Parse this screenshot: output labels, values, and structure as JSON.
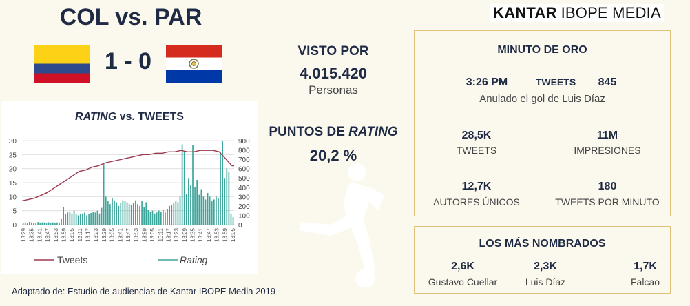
{
  "match": {
    "title": "COL vs. PAR",
    "score": "1 - 0"
  },
  "audience": {
    "visto_label": "VISTO POR",
    "visto_value": "4.015.420",
    "visto_unit": "Personas",
    "puntos_label_prefix": "PUNTOS DE ",
    "puntos_label_em": "RATING",
    "puntos_value": "20,2 %"
  },
  "brand": {
    "bold": "KANTAR",
    "rest": "IBOPE MEDIA"
  },
  "minuto": {
    "title": "MINUTO DE ORO",
    "time": "3:26 PM",
    "tweets_label": "TWEETS",
    "tweets_count": "845",
    "caption": "Anulado el gol de Luis Díaz",
    "stats": [
      {
        "value": "28,5K",
        "label": "TWEETS"
      },
      {
        "value": "11M",
        "label": "IMPRESIONES"
      },
      {
        "value": "12,7K",
        "label": "AUTORES ÚNICOS"
      },
      {
        "value": "180",
        "label": "TWEETS POR MINUTO"
      }
    ]
  },
  "nombrados": {
    "title": "LOS MÁS NOMBRADOS",
    "people": [
      {
        "value": "2,6K",
        "name": "Gustavo Cuellar"
      },
      {
        "value": "2,3K",
        "name": "Luis Díaz"
      },
      {
        "value": "1,7K",
        "name": "Falcao"
      }
    ]
  },
  "source": "Adaptado de: Estudio de audiencias de Kantar IBOPE Media 2019",
  "colors": {
    "navy": "#1f2a44",
    "tweets_line": "#9b3a4f",
    "rating_bars": "#3ea59a",
    "panel_border": "#e0c27a",
    "col_yellow": "#fcd116",
    "col_blue": "#2c4a8c",
    "col_red": "#ce1126",
    "par_red": "#d52b1e",
    "par_blue": "#0038a8"
  },
  "chart_data": {
    "type": "line",
    "title_em": "RATING",
    "title_rest": " vs. TWEETS",
    "y_left_ticks": [
      0,
      5,
      10,
      15,
      20,
      25,
      30
    ],
    "y_right_ticks": [
      0,
      100,
      200,
      300,
      400,
      500,
      600,
      700,
      800,
      900
    ],
    "x_tick_labels": [
      "13:29",
      "13:35",
      "13:41",
      "13:47",
      "13:53",
      "13:59",
      "13:05",
      "13:11",
      "13:17",
      "13:23",
      "13:29",
      "13:35",
      "13:41",
      "13:47",
      "13:53",
      "13:59",
      "13:05",
      "13:11",
      "13:17",
      "13:23",
      "13:29",
      "13:35",
      "13:41",
      "13:47",
      "13:53",
      "13:59",
      "13:05"
    ],
    "legend": [
      "Tweets",
      "Rating"
    ],
    "series": [
      {
        "name": "Tweets",
        "axis": "left",
        "x": [
          0,
          3,
          6,
          9,
          12,
          15,
          18,
          21,
          24,
          27,
          30,
          33,
          36,
          39,
          42,
          45,
          48,
          51,
          54,
          57,
          60,
          63,
          66,
          69,
          72,
          75,
          78,
          81,
          84,
          87,
          90,
          93,
          96,
          99,
          100
        ],
        "values": [
          8.5,
          9,
          9.5,
          10.5,
          11.5,
          13,
          14.5,
          16,
          17.5,
          19,
          19.5,
          20.5,
          21,
          22,
          22.5,
          23,
          23.5,
          24,
          24.5,
          25,
          25,
          25.5,
          25.5,
          26,
          26,
          26.5,
          26,
          26,
          26.5,
          26.5,
          26.5,
          26,
          23.5,
          21,
          21
        ]
      },
      {
        "name": "Rating",
        "axis": "right",
        "x_count": 100,
        "values": [
          20,
          25,
          20,
          30,
          25,
          20,
          22,
          28,
          20,
          25,
          24,
          20,
          26,
          22,
          25,
          20,
          24,
          22,
          60,
          190,
          110,
          130,
          140,
          120,
          150,
          110,
          100,
          115,
          120,
          130,
          100,
          115,
          125,
          140,
          130,
          150,
          120,
          180,
          660,
          300,
          250,
          220,
          280,
          260,
          240,
          200,
          230,
          260,
          250,
          240,
          220,
          210,
          230,
          260,
          220,
          200,
          250,
          190,
          240,
          160,
          140,
          150,
          120,
          130,
          150,
          140,
          160,
          130,
          170,
          200,
          210,
          230,
          250,
          240,
          300,
          860,
          780,
          330,
          500,
          420,
          850,
          400,
          480,
          320,
          380,
          300,
          270,
          340,
          300,
          250,
          270,
          300,
          280,
          780,
          900,
          500,
          600,
          560,
          120,
          80
        ]
      }
    ],
    "ylim_left": [
      0,
      30
    ],
    "ylim_right": [
      0,
      900
    ]
  }
}
